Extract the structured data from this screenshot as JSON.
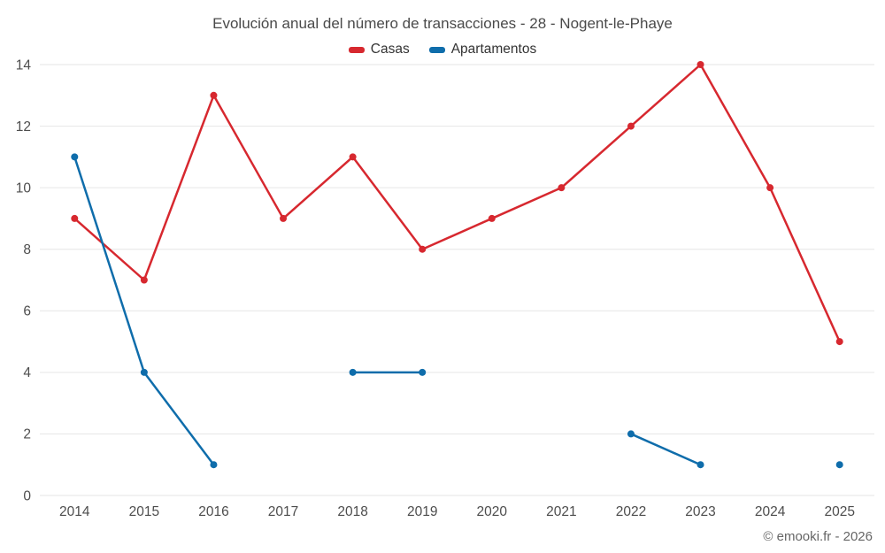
{
  "chart_data": {
    "type": "line",
    "title": "Evolución anual del número de transacciones - 28 - Nogent-le-Phaye",
    "categories": [
      "2014",
      "2015",
      "2016",
      "2017",
      "2018",
      "2019",
      "2020",
      "2021",
      "2022",
      "2023",
      "2024",
      "2025"
    ],
    "series": [
      {
        "name": "Casas",
        "color": "#d7282f",
        "values": [
          9,
          7,
          13,
          9,
          11,
          8,
          9,
          10,
          12,
          14,
          10,
          5
        ]
      },
      {
        "name": "Apartamentos",
        "color": "#0f6dab",
        "values": [
          11,
          4,
          1,
          null,
          4,
          4,
          null,
          null,
          2,
          1,
          null,
          1
        ]
      }
    ],
    "ylim": [
      0,
      14
    ],
    "ytick_step": 2,
    "grid": "horizontal",
    "legend_position": "top",
    "xlabel": "",
    "ylabel": ""
  },
  "colors": {
    "grid": "#e6e6e6",
    "tick_text": "#4d4d4d",
    "title_text": "#4a4a4a"
  },
  "footer": {
    "copyright": "© emooki.fr - 2026"
  }
}
